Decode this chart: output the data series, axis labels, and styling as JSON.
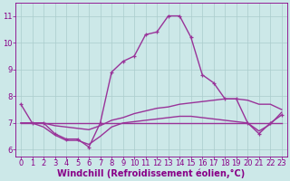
{
  "lines": [
    {
      "x": [
        0,
        1,
        2,
        3,
        4,
        5,
        6,
        7,
        8,
        9,
        10,
        11,
        12,
        13,
        14,
        15,
        16,
        17,
        18,
        19,
        20,
        21,
        22,
        23
      ],
      "y": [
        7.7,
        7.0,
        7.0,
        6.6,
        6.4,
        6.4,
        6.1,
        7.0,
        8.9,
        9.3,
        9.5,
        10.3,
        10.4,
        11.0,
        11.0,
        10.2,
        8.8,
        8.5,
        7.9,
        7.9,
        7.0,
        6.6,
        7.0,
        7.3
      ],
      "color": "#993399",
      "linewidth": 1.0,
      "marker": "+"
    },
    {
      "x": [
        0,
        1,
        2,
        3,
        4,
        5,
        6,
        7,
        8,
        9,
        10,
        11,
        12,
        13,
        14,
        15,
        16,
        17,
        18,
        19,
        20,
        21,
        22,
        23
      ],
      "y": [
        7.0,
        7.0,
        7.0,
        7.0,
        7.0,
        7.0,
        7.0,
        7.0,
        7.0,
        7.0,
        7.0,
        7.0,
        7.0,
        7.0,
        7.0,
        7.0,
        7.0,
        7.0,
        7.0,
        7.0,
        7.0,
        7.0,
        7.0,
        7.0
      ],
      "color": "#993399",
      "linewidth": 1.0,
      "marker": null
    },
    {
      "x": [
        0,
        1,
        2,
        3,
        4,
        5,
        6,
        7,
        8,
        9,
        10,
        11,
        12,
        13,
        14,
        15,
        16,
        17,
        18,
        19,
        20,
        21,
        22,
        23
      ],
      "y": [
        7.0,
        7.0,
        7.0,
        6.9,
        6.85,
        6.8,
        6.75,
        6.9,
        7.1,
        7.2,
        7.35,
        7.45,
        7.55,
        7.6,
        7.7,
        7.75,
        7.8,
        7.85,
        7.9,
        7.9,
        7.85,
        7.7,
        7.7,
        7.5
      ],
      "color": "#993399",
      "linewidth": 1.0,
      "marker": null
    },
    {
      "x": [
        0,
        1,
        2,
        3,
        4,
        5,
        6,
        7,
        8,
        9,
        10,
        11,
        12,
        13,
        14,
        15,
        16,
        17,
        18,
        19,
        20,
        21,
        22,
        23
      ],
      "y": [
        7.0,
        7.0,
        6.85,
        6.55,
        6.35,
        6.35,
        6.2,
        6.5,
        6.85,
        7.0,
        7.05,
        7.1,
        7.15,
        7.2,
        7.25,
        7.25,
        7.2,
        7.15,
        7.1,
        7.05,
        7.0,
        6.7,
        6.95,
        7.4
      ],
      "color": "#993399",
      "linewidth": 1.0,
      "marker": null
    }
  ],
  "xlim": [
    -0.5,
    23.5
  ],
  "ylim": [
    5.75,
    11.5
  ],
  "xticks": [
    0,
    1,
    2,
    3,
    4,
    5,
    6,
    7,
    8,
    9,
    10,
    11,
    12,
    13,
    14,
    15,
    16,
    17,
    18,
    19,
    20,
    21,
    22,
    23
  ],
  "yticks": [
    6,
    7,
    8,
    9,
    10,
    11
  ],
  "xlabel": "Windchill (Refroidissement éolien,°C)",
  "background_color": "#cce8e8",
  "grid_color": "#aacccc",
  "tick_color": "#880088",
  "label_color": "#880088",
  "xlabel_fontsize": 7.0,
  "tick_fontsize": 6.0
}
